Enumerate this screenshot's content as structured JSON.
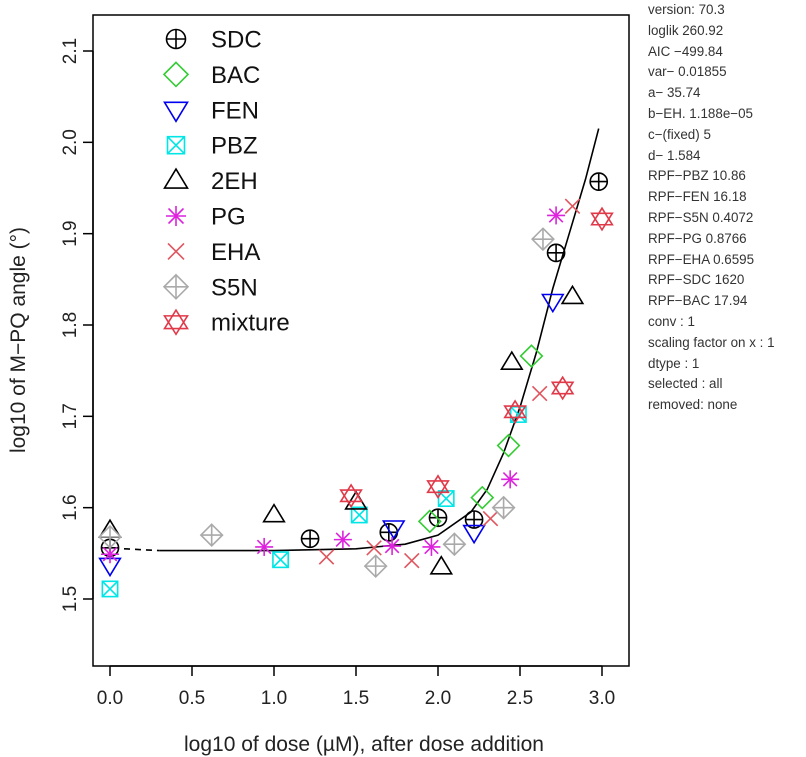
{
  "chart_data": {
    "type": "scatter",
    "xlabel": "log10 of dose (µM), after dose addition",
    "ylabel": "log10 of M−PQ angle (°)",
    "xlim": [
      -0.1,
      3.05
    ],
    "ylim": [
      1.45,
      2.14
    ],
    "x_ticks": [
      0.0,
      0.5,
      1.0,
      1.5,
      2.0,
      2.5,
      3.0
    ],
    "x_tick_labels": [
      "0.0",
      "0.5",
      "1.0",
      "1.5",
      "2.0",
      "2.5",
      "3.0"
    ],
    "y_ticks": [
      1.5,
      1.6,
      1.7,
      1.8,
      1.9,
      2.0,
      2.1
    ],
    "y_tick_labels": [
      "1.5",
      "1.6",
      "1.7",
      "1.8",
      "1.9",
      "2.0",
      "2.1"
    ],
    "legend_position": "top-left",
    "fit": {
      "a": 35.74,
      "b": 1.188e-05,
      "c": 5,
      "d": 1.584,
      "baseline": 1.553,
      "dashed_segment": [
        [
          0.0,
          1.555
        ],
        [
          0.3,
          1.553
        ]
      ],
      "curve": [
        [
          0.3,
          1.553
        ],
        [
          1.0,
          1.553
        ],
        [
          1.5,
          1.555
        ],
        [
          1.8,
          1.56
        ],
        [
          2.0,
          1.57
        ],
        [
          2.2,
          1.595
        ],
        [
          2.3,
          1.62
        ],
        [
          2.4,
          1.66
        ],
        [
          2.5,
          1.71
        ],
        [
          2.6,
          1.77
        ],
        [
          2.7,
          1.84
        ],
        [
          2.8,
          1.9
        ],
        [
          2.9,
          1.96
        ],
        [
          2.98,
          2.015
        ]
      ]
    },
    "series": [
      {
        "name": "SDC",
        "marker": "circle-plus",
        "color": "#000000",
        "points": [
          [
            0.0,
            1.556
          ],
          [
            1.22,
            1.566
          ],
          [
            1.7,
            1.573
          ],
          [
            2.0,
            1.589
          ],
          [
            2.22,
            1.587
          ],
          [
            2.72,
            1.879
          ],
          [
            2.98,
            1.957
          ]
        ]
      },
      {
        "name": "BAC",
        "marker": "diamond",
        "color": "#33cc33",
        "points": [
          [
            1.95,
            1.585
          ],
          [
            2.27,
            1.611
          ],
          [
            2.43,
            1.668
          ],
          [
            2.57,
            1.766
          ]
        ]
      },
      {
        "name": "FEN",
        "marker": "triangle-down",
        "color": "#0000ee",
        "points": [
          [
            0.0,
            1.537
          ],
          [
            1.73,
            1.578
          ],
          [
            2.22,
            1.573
          ],
          [
            2.7,
            1.826
          ]
        ]
      },
      {
        "name": "PBZ",
        "marker": "square-x",
        "color": "#00e5e5",
        "points": [
          [
            0.0,
            1.511
          ],
          [
            1.04,
            1.543
          ],
          [
            1.52,
            1.592
          ],
          [
            2.05,
            1.61
          ],
          [
            2.49,
            1.702
          ]
        ]
      },
      {
        "name": "2EH",
        "marker": "triangle-up",
        "color": "#000000",
        "points": [
          [
            0.0,
            1.575
          ],
          [
            1.0,
            1.592
          ],
          [
            1.5,
            1.606
          ],
          [
            2.02,
            1.535
          ],
          [
            2.45,
            1.759
          ],
          [
            2.82,
            1.831
          ]
        ]
      },
      {
        "name": "PG",
        "marker": "star",
        "color": "#dd22dd",
        "points": [
          [
            0.0,
            1.549
          ],
          [
            0.94,
            1.557
          ],
          [
            1.42,
            1.565
          ],
          [
            1.72,
            1.558
          ],
          [
            1.96,
            1.557
          ],
          [
            2.44,
            1.631
          ],
          [
            2.72,
            1.92
          ]
        ]
      },
      {
        "name": "EHA",
        "marker": "x",
        "color": "#e0555e",
        "points": [
          [
            1.32,
            1.546
          ],
          [
            1.61,
            1.556
          ],
          [
            1.84,
            1.542
          ],
          [
            2.32,
            1.588
          ],
          [
            2.62,
            1.725
          ],
          [
            2.82,
            1.93
          ]
        ]
      },
      {
        "name": "S5N",
        "marker": "diamond-plus",
        "color": "#aaaaaa",
        "points": [
          [
            0.0,
            1.568
          ],
          [
            0.62,
            1.57
          ],
          [
            1.62,
            1.536
          ],
          [
            2.1,
            1.56
          ],
          [
            2.4,
            1.6
          ],
          [
            2.64,
            1.894
          ]
        ]
      },
      {
        "name": "mixture",
        "marker": "hexagram",
        "color": "#e03a4a",
        "points": [
          [
            1.47,
            1.613
          ],
          [
            2.0,
            1.623
          ],
          [
            2.47,
            1.705
          ],
          [
            2.76,
            1.731
          ],
          [
            3.0,
            1.916
          ]
        ]
      }
    ]
  },
  "info_panel": [
    "version: 70.3",
    "loglik   260.92",
    "AIC   −499.84",
    "var−   0.01855",
    "a−   35.74",
    "b−EH.   1.188e−05",
    "c−(fixed)   5",
    "d−   1.584",
    "RPF−PBZ   10.86",
    "RPF−FEN   16.18",
    "RPF−S5N   0.4072",
    "RPF−PG   0.8766",
    "RPF−EHA   0.6595",
    "RPF−SDC   1620",
    "RPF−BAC   17.94",
    "conv : 1",
    "scaling factor on x :  1",
    "dtype : 1",
    " selected :  all",
    "removed: none"
  ]
}
